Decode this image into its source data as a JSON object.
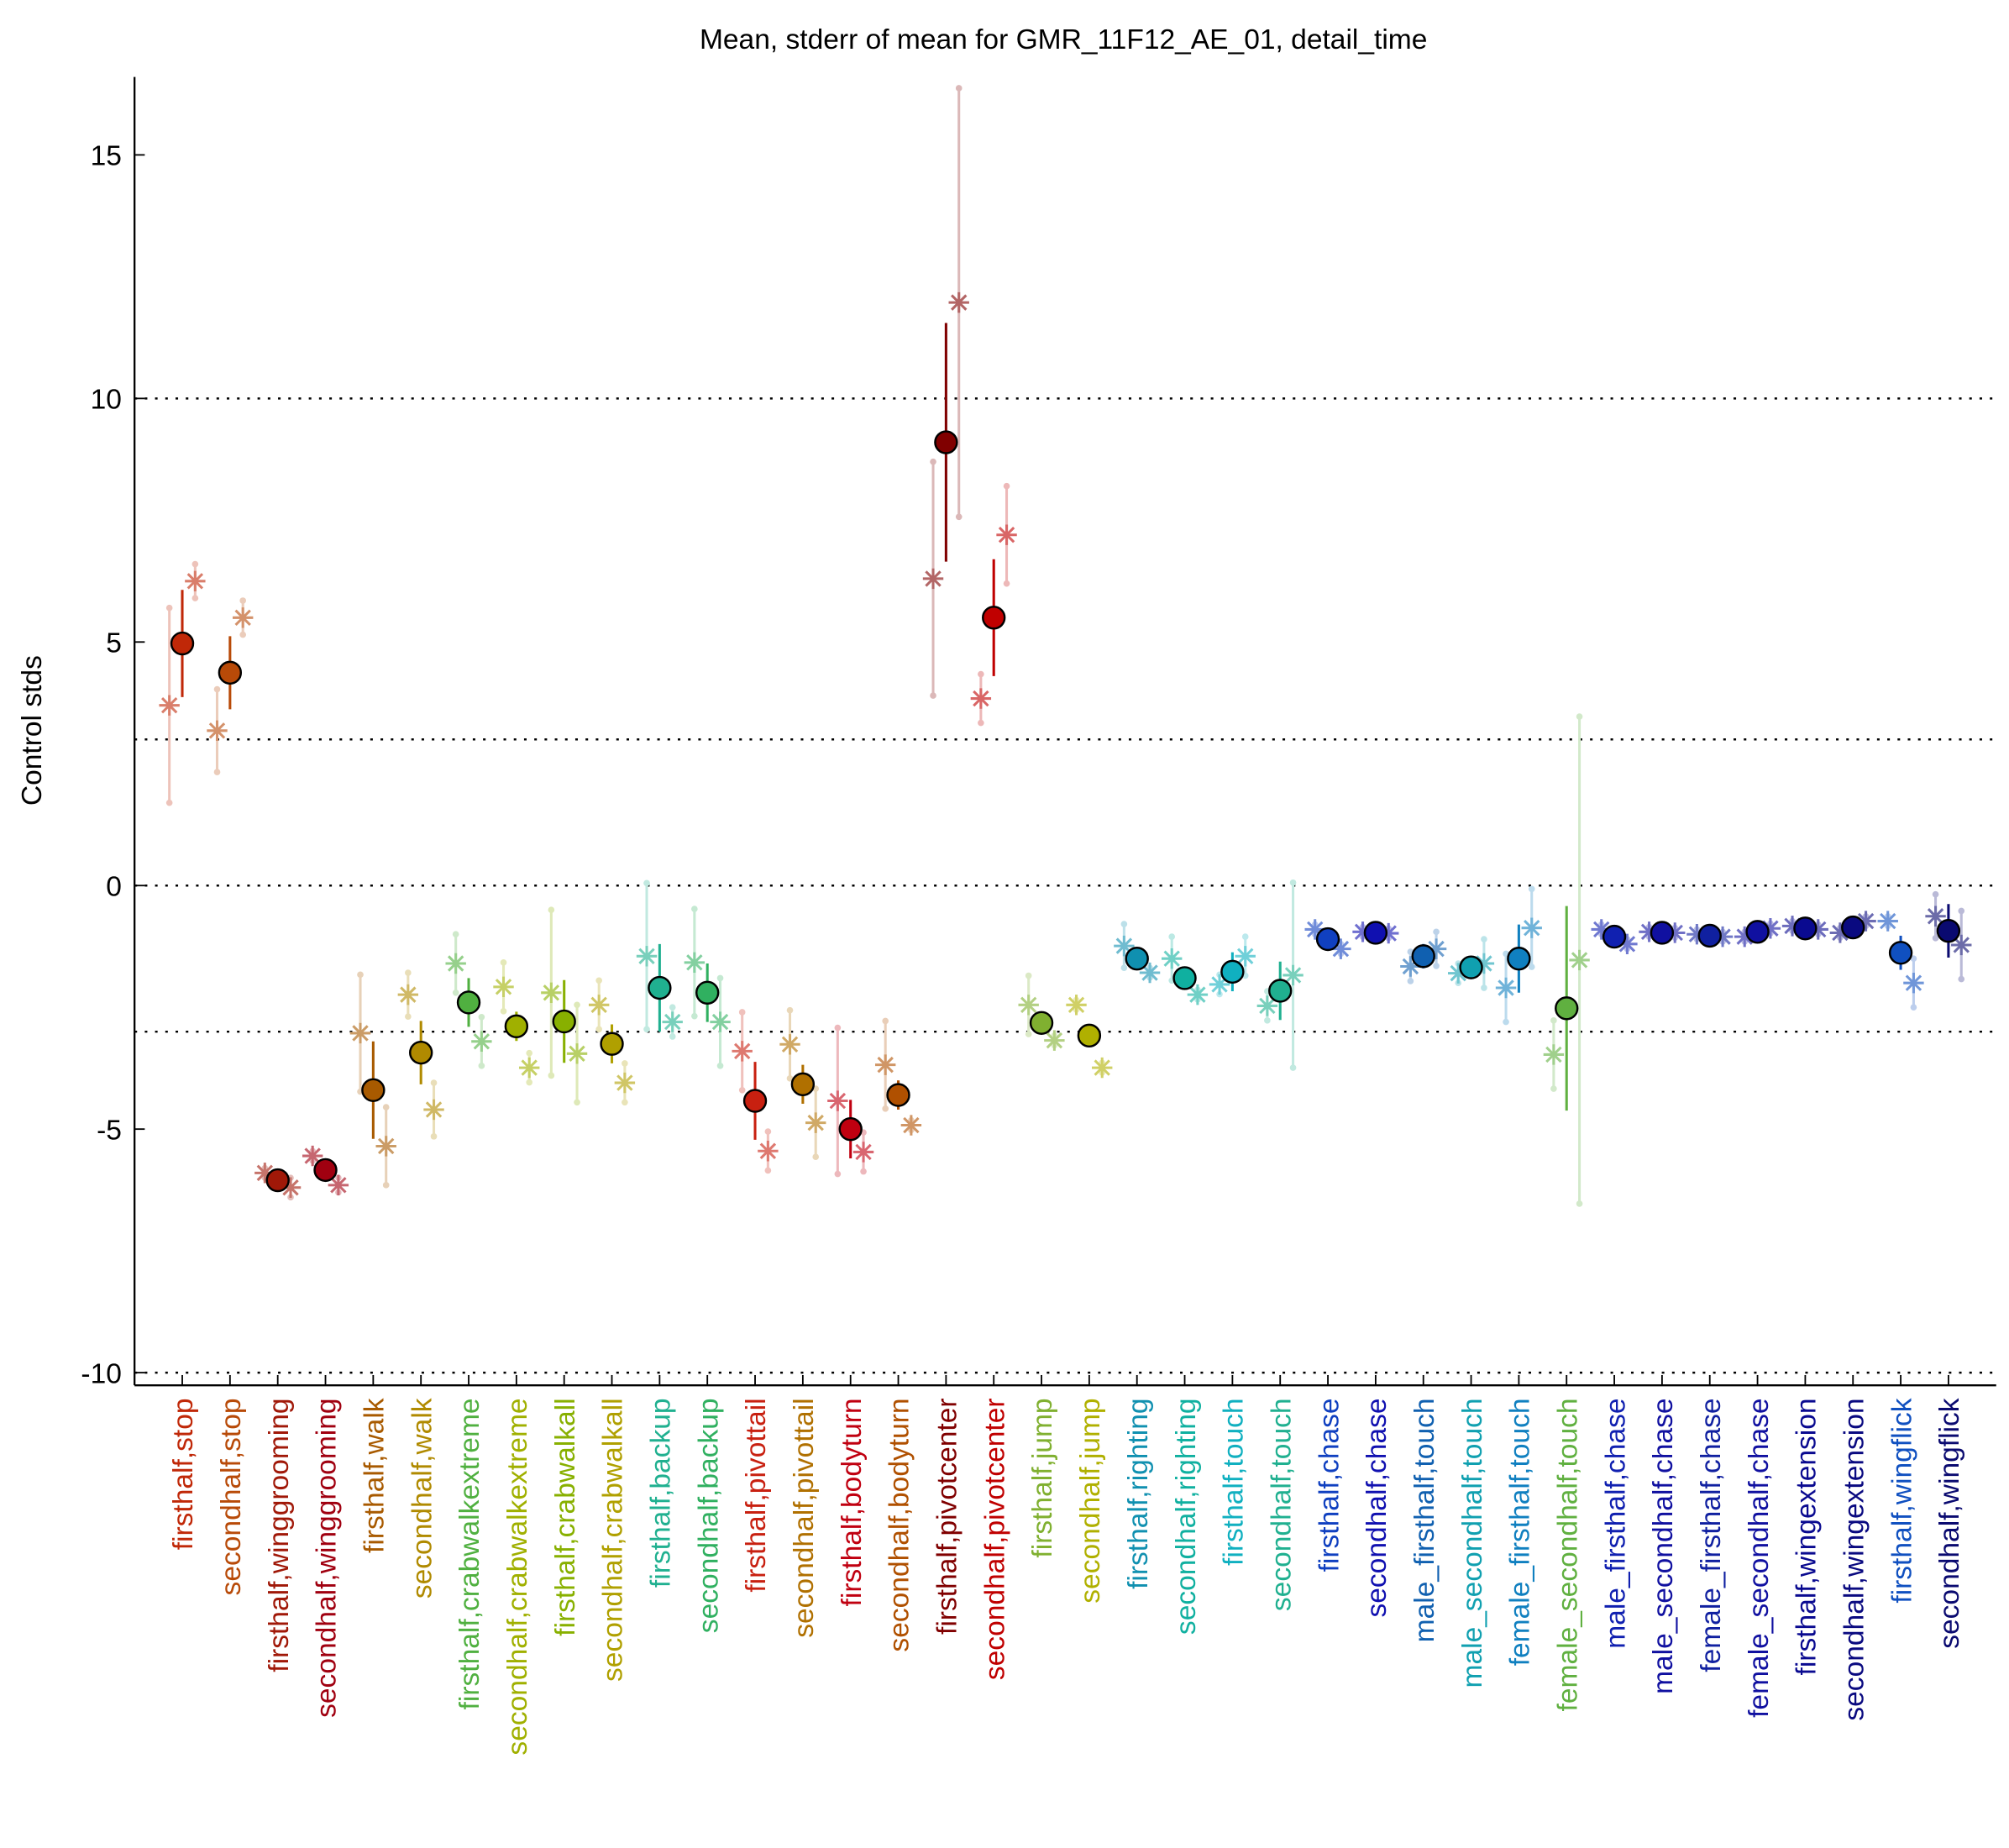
{
  "chart_data": {
    "type": "errorbar",
    "title": "Mean, stderr of mean for GMR_11F12_AE_01, detail_time",
    "ylabel": "Control stds",
    "ylim": [
      -10.26,
      16.6
    ],
    "yticks": [
      -10,
      -5,
      0,
      5,
      10,
      15
    ],
    "hlines": [
      -10,
      -3,
      0,
      3,
      10
    ],
    "grid_style": "dotted",
    "categories": [
      "firsthalf,stop",
      "secondhalf,stop",
      "firsthalf,winggrooming",
      "secondhalf,winggrooming",
      "firsthalf,walk",
      "secondhalf,walk",
      "firsthalf,crabwalkextreme",
      "secondhalf,crabwalkextreme",
      "firsthalf,crabwalkall",
      "secondhalf,crabwalkall",
      "firsthalf,backup",
      "secondhalf,backup",
      "firsthalf,pivottail",
      "secondhalf,pivottail",
      "firsthalf,bodyturn",
      "secondhalf,bodyturn",
      "firsthalf,pivotcenter",
      "secondhalf,pivotcenter",
      "firsthalf,jump",
      "secondhalf,jump",
      "firsthalf,righting",
      "secondhalf,righting",
      "firsthalf,touch",
      "secondhalf,touch",
      "firsthalf,chase",
      "secondhalf,chase",
      "male_firsthalf,touch",
      "male_secondhalf,touch",
      "female_firsthalf,touch",
      "female_secondhalf,touch",
      "male_firsthalf,chase",
      "male_secondhalf,chase",
      "female_firsthalf,chase",
      "female_secondhalf,chase",
      "firsthalf,wingextension",
      "secondhalf,wingextension",
      "firsthalf,wingflick",
      "secondhalf,wingflick"
    ],
    "colors": [
      "#c02808",
      "#b84a08",
      "#a01808",
      "#a00010",
      "#a85a00",
      "#b08a00",
      "#50b040",
      "#a0b000",
      "#88b000",
      "#b0a000",
      "#20b090",
      "#30b060",
      "#c82010",
      "#b07000",
      "#c00010",
      "#b05000",
      "#800000",
      "#c00000",
      "#80b030",
      "#b0b000",
      "#1090b0",
      "#10b0a0",
      "#10b0c0",
      "#20b090",
      "#1040c0",
      "#1010b0",
      "#1060b0",
      "#10a0b0",
      "#1080c0",
      "#60b040",
      "#1020b0",
      "#1010a0",
      "#1020a0",
      "#1010a0",
      "#0a0a90",
      "#0a0a80",
      "#1050c0",
      "#0a0a70"
    ],
    "series": [
      {
        "marker": "circle",
        "values": [
          4.97,
          4.37,
          -6.05,
          -5.84,
          -4.2,
          -3.43,
          -2.4,
          -2.89,
          -2.79,
          -3.25,
          -2.1,
          -2.2,
          -4.42,
          -4.08,
          -5.0,
          -4.3,
          9.1,
          5.5,
          -2.82,
          -3.08,
          -1.5,
          -1.9,
          -1.77,
          -2.16,
          -1.1,
          -0.97,
          -1.45,
          -1.68,
          -1.5,
          -2.52,
          -1.05,
          -0.97,
          -1.03,
          -0.95,
          -0.88,
          -0.86,
          -1.38,
          -0.93
        ],
        "errors": [
          1.1,
          0.75,
          0.1,
          0.1,
          1.0,
          0.65,
          0.5,
          0.3,
          0.85,
          0.4,
          0.9,
          0.6,
          0.8,
          0.4,
          0.6,
          0.3,
          2.45,
          1.2,
          0.1,
          0.1,
          0.1,
          0.1,
          0.4,
          0.6,
          0.1,
          0.1,
          0.25,
          0.1,
          0.7,
          2.1,
          0.1,
          0.1,
          0.1,
          0.1,
          0.1,
          0.1,
          0.35,
          0.55
        ]
      },
      {
        "marker": "asterisk",
        "values": [
          3.7,
          3.18,
          -5.9,
          -5.55,
          -3.03,
          -2.24,
          -1.6,
          -2.08,
          -2.2,
          -2.45,
          -1.45,
          -1.58,
          -3.4,
          -3.26,
          -4.42,
          -3.68,
          6.3,
          3.84,
          -2.45,
          -2.45,
          -1.24,
          -1.5,
          -2.03,
          -2.47,
          -0.9,
          -0.95,
          -1.66,
          -1.8,
          -2.1,
          -3.47,
          -0.9,
          -0.95,
          -1.0,
          -1.05,
          -0.83,
          -0.97,
          -0.73,
          -0.63
        ],
        "errors": [
          2.0,
          0.85,
          0.1,
          0.1,
          1.2,
          0.45,
          0.6,
          0.5,
          1.7,
          0.5,
          1.5,
          1.1,
          0.8,
          0.7,
          1.5,
          0.9,
          2.4,
          0.5,
          0.6,
          0.1,
          0.45,
          0.45,
          0.2,
          0.3,
          0.1,
          0.1,
          0.3,
          0.2,
          0.7,
          0.7,
          0.1,
          0.1,
          0.1,
          0.1,
          0.1,
          0.1,
          0.1,
          0.45
        ]
      },
      {
        "marker": "asterisk",
        "values": [
          6.25,
          5.5,
          -6.2,
          -6.15,
          -5.35,
          -4.6,
          -3.2,
          -3.74,
          -3.45,
          -4.05,
          -2.8,
          -2.8,
          -5.45,
          -4.87,
          -5.47,
          -4.92,
          11.97,
          7.2,
          -3.18,
          -3.74,
          -1.79,
          -2.24,
          -1.45,
          -1.84,
          -1.3,
          -0.98,
          -1.3,
          -1.6,
          -0.87,
          -1.53,
          -1.2,
          -0.97,
          -1.05,
          -0.88,
          -0.9,
          -0.73,
          -2.0,
          -1.22
        ],
        "errors": [
          0.35,
          0.35,
          0.2,
          0.15,
          0.8,
          0.55,
          0.5,
          0.3,
          1.0,
          0.4,
          0.3,
          0.9,
          0.4,
          0.7,
          0.4,
          0.1,
          4.4,
          1.0,
          0.1,
          0.1,
          0.1,
          0.1,
          0.4,
          1.9,
          0.1,
          0.1,
          0.35,
          0.5,
          0.8,
          5.0,
          0.1,
          0.1,
          0.1,
          0.1,
          0.1,
          0.1,
          0.5,
          0.7
        ]
      }
    ]
  }
}
